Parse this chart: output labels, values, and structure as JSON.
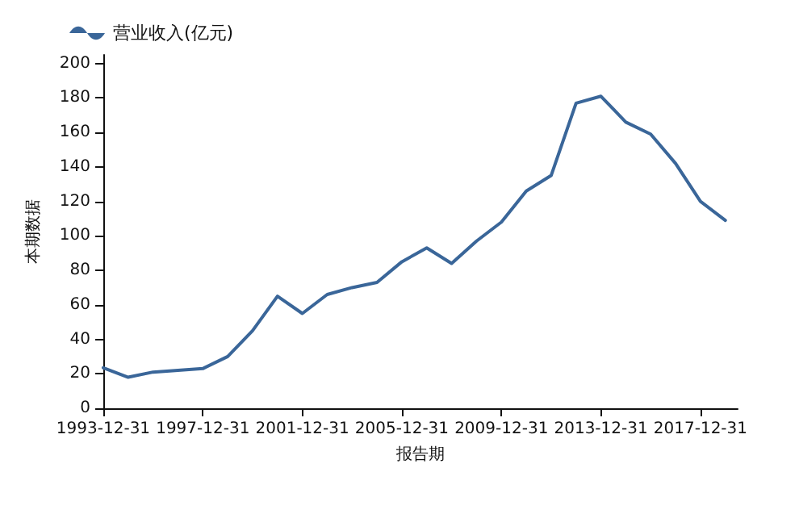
{
  "chart_data": {
    "type": "line",
    "xlabel": "报告期",
    "ylabel": "本期数据",
    "x": [
      "1993-12-31",
      "1994-12-31",
      "1995-12-31",
      "1996-12-31",
      "1997-12-31",
      "1998-12-31",
      "1999-12-31",
      "2000-12-31",
      "2001-12-31",
      "2002-12-31",
      "2003-12-31",
      "2004-12-31",
      "2005-12-31",
      "2006-12-31",
      "2007-12-31",
      "2008-12-31",
      "2009-12-31",
      "2010-12-31",
      "2011-12-31",
      "2012-12-31",
      "2013-12-31",
      "2014-12-31",
      "2015-12-31",
      "2016-12-31",
      "2017-12-31",
      "2018-12-31"
    ],
    "series": [
      {
        "name": "营业收入(亿元)",
        "color": "#3a6699",
        "values": [
          23.5,
          18,
          21,
          22,
          23,
          30,
          45,
          65,
          55,
          66,
          70,
          73,
          85,
          93,
          84,
          97,
          108,
          126,
          135,
          177,
          181,
          166,
          159,
          142,
          120,
          109
        ]
      }
    ],
    "xlim": [
      "1993-12-31",
      "2019-06-30"
    ],
    "xticks": [
      "1993-12-31",
      "1997-12-31",
      "2001-12-31",
      "2005-12-31",
      "2009-12-31",
      "2013-12-31",
      "2017-12-31"
    ],
    "ylim": [
      0,
      205
    ],
    "yticks": [
      0,
      20,
      40,
      60,
      80,
      100,
      120,
      140,
      160,
      180,
      200
    ],
    "grid": false,
    "legend": "top left",
    "marker": "none",
    "line_style": "solid"
  }
}
